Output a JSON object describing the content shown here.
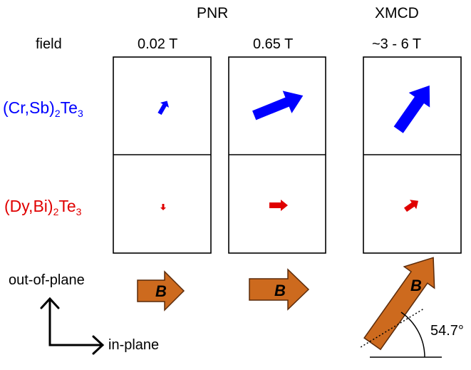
{
  "headers": {
    "pnr": "PNR",
    "xmcd": "XMCD"
  },
  "row_label_field": "field",
  "field_values": [
    "0.02 T",
    "0.65 T",
    "~3 - 6 T"
  ],
  "samples": [
    {
      "main": "(Cr,Sb)",
      "sub1": "2",
      "mid": "Te",
      "sub2": "3",
      "color": "#0000ff"
    },
    {
      "main": "(Dy,Bi)",
      "sub1": "2",
      "mid": "Te",
      "sub2": "3",
      "color": "#e00000"
    }
  ],
  "arrow_colors": {
    "cr_sb": "#0000ff",
    "dy_bi": "#e00000",
    "field_arrow_fill": "#cd6a1e",
    "field_arrow_stroke": "#5a2a0a"
  },
  "field_arrow_label": "B",
  "angle_label": "54.7°",
  "axes_labels": {
    "out_of_plane": "out-of-plane",
    "in_plane": "in-plane"
  }
}
